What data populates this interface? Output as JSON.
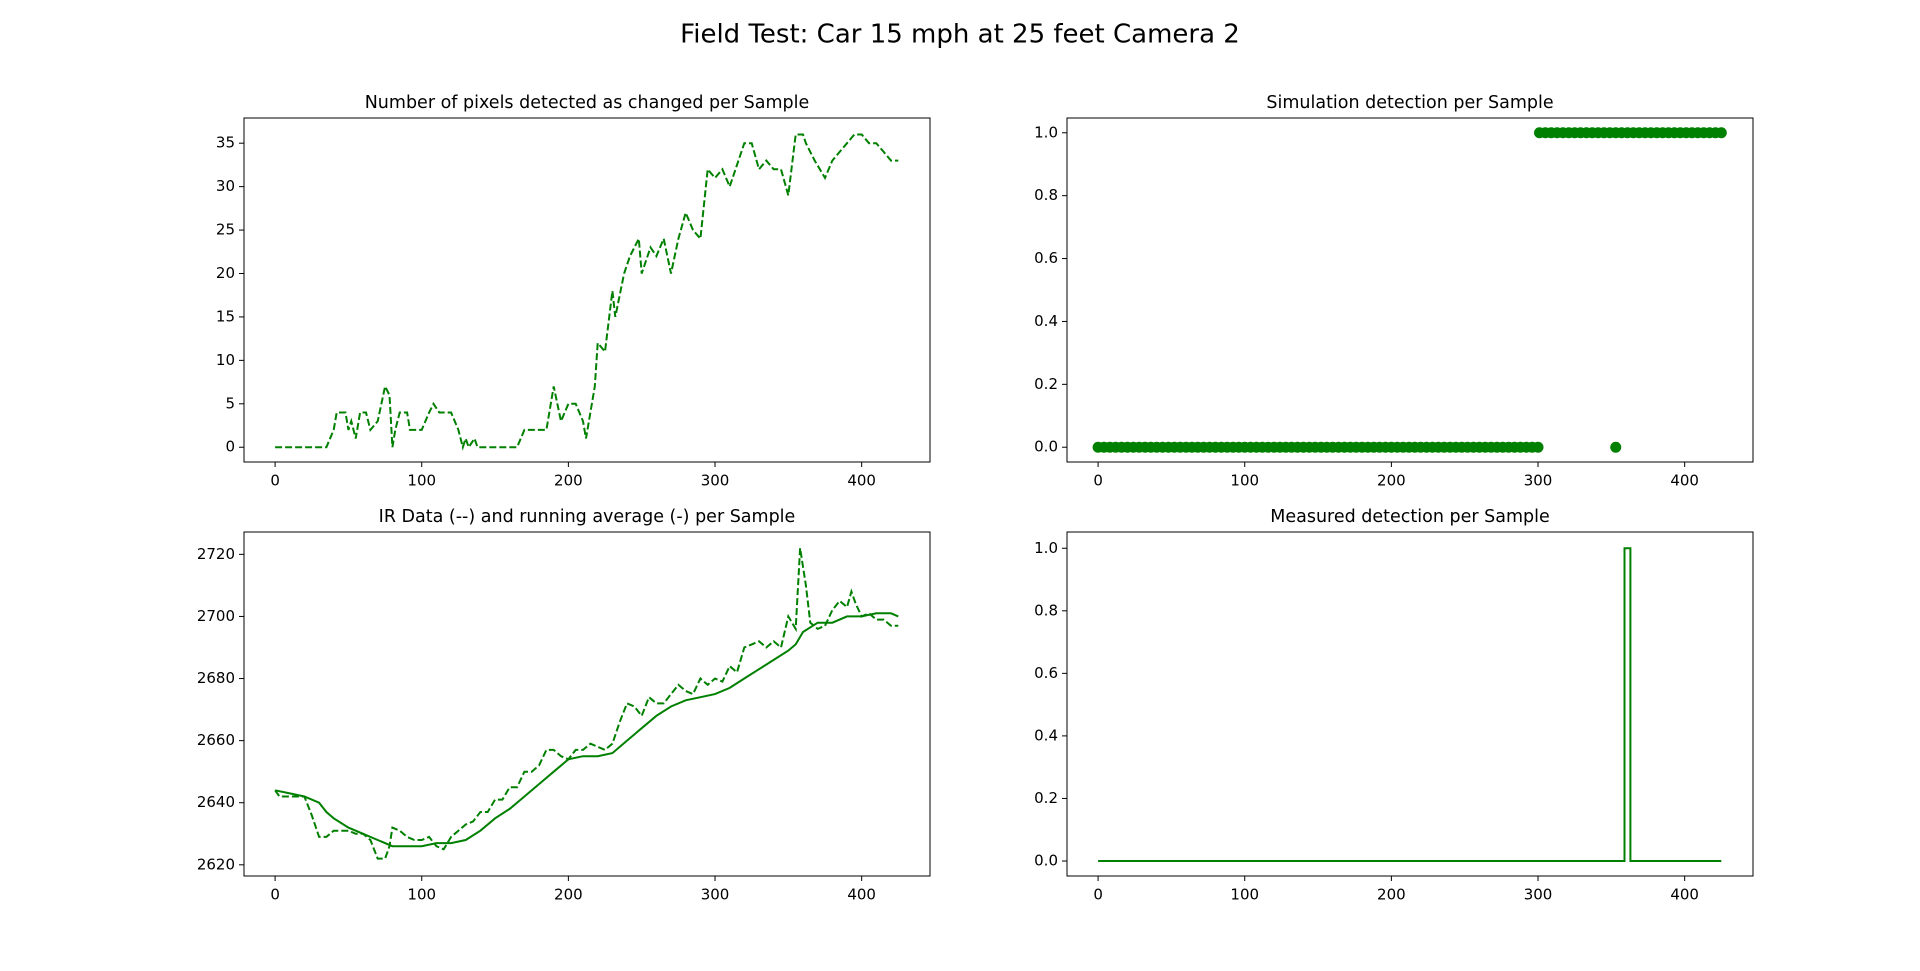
{
  "title": "Field Test: Car 15 mph at 25 feet Camera 2",
  "chart_data": [
    {
      "type": "line",
      "title": "Number of pixels detected as changed per Sample",
      "color": "#008000",
      "linestyle": "dashed",
      "x": [
        0,
        35,
        40,
        42,
        48,
        50,
        52,
        55,
        58,
        62,
        65,
        70,
        75,
        78,
        80,
        82,
        85,
        90,
        92,
        100,
        105,
        108,
        112,
        120,
        125,
        128,
        130,
        132,
        136,
        138,
        165,
        170,
        178,
        185,
        190,
        195,
        200,
        205,
        210,
        212,
        218,
        220,
        225,
        230,
        232,
        238,
        242,
        248,
        250,
        256,
        260,
        265,
        270,
        275,
        280,
        285,
        290,
        295,
        300,
        305,
        310,
        320,
        325,
        330,
        335,
        340,
        345,
        350,
        355,
        360,
        362,
        368,
        375,
        380,
        390,
        395,
        400,
        405,
        410,
        415,
        420,
        425
      ],
      "values": [
        0,
        0,
        2,
        4,
        4,
        2,
        3,
        1,
        4,
        4,
        2,
        3,
        7,
        6,
        0,
        2,
        4,
        4,
        2,
        2,
        4,
        5,
        4,
        4,
        2,
        0,
        1,
        0,
        1,
        0,
        0,
        2,
        2,
        2,
        7,
        3,
        5,
        5,
        3,
        1,
        7,
        12,
        11,
        18,
        15,
        20,
        22,
        24,
        20,
        23,
        22,
        24,
        20,
        24,
        27,
        25,
        24,
        32,
        31,
        32,
        30,
        35,
        35,
        32,
        33,
        32,
        32,
        29,
        36,
        36,
        35,
        33,
        31,
        33,
        35,
        36,
        36,
        35,
        35,
        34,
        33,
        33
      ],
      "xlim": [
        -21.2,
        446.6
      ],
      "xticks": [
        0,
        100,
        200,
        300,
        400
      ],
      "ylim": [
        -1.7,
        37.9
      ],
      "yticks": [
        0,
        5,
        10,
        15,
        20,
        25,
        30,
        35
      ]
    },
    {
      "type": "scatter",
      "title": "Simulation detection per Sample",
      "color": "#008000",
      "x": [
        0,
        4,
        8,
        12,
        16,
        20,
        24,
        28,
        32,
        36,
        40,
        44,
        48,
        52,
        56,
        60,
        64,
        68,
        72,
        76,
        80,
        84,
        88,
        92,
        96,
        100,
        104,
        108,
        112,
        116,
        120,
        124,
        128,
        132,
        136,
        140,
        144,
        148,
        152,
        156,
        160,
        164,
        168,
        172,
        176,
        180,
        184,
        188,
        192,
        196,
        200,
        204,
        208,
        212,
        216,
        220,
        224,
        228,
        232,
        236,
        240,
        244,
        248,
        252,
        256,
        260,
        264,
        268,
        272,
        276,
        280,
        284,
        288,
        292,
        296,
        300,
        301,
        305,
        309,
        313,
        317,
        321,
        325,
        329,
        333,
        337,
        341,
        345,
        349,
        353,
        357,
        361,
        365,
        369,
        373,
        377,
        381,
        385,
        389,
        393,
        397,
        401,
        405,
        409,
        413,
        417,
        421,
        425,
        353
      ],
      "values": [
        0,
        0,
        0,
        0,
        0,
        0,
        0,
        0,
        0,
        0,
        0,
        0,
        0,
        0,
        0,
        0,
        0,
        0,
        0,
        0,
        0,
        0,
        0,
        0,
        0,
        0,
        0,
        0,
        0,
        0,
        0,
        0,
        0,
        0,
        0,
        0,
        0,
        0,
        0,
        0,
        0,
        0,
        0,
        0,
        0,
        0,
        0,
        0,
        0,
        0,
        0,
        0,
        0,
        0,
        0,
        0,
        0,
        0,
        0,
        0,
        0,
        0,
        0,
        0,
        0,
        0,
        0,
        0,
        0,
        0,
        0,
        0,
        0,
        0,
        0,
        0,
        1,
        1,
        1,
        1,
        1,
        1,
        1,
        1,
        1,
        1,
        1,
        1,
        1,
        1,
        1,
        1,
        1,
        1,
        1,
        1,
        1,
        1,
        1,
        1,
        1,
        1,
        1,
        1,
        1,
        1,
        1,
        1,
        0
      ],
      "xlim": [
        -21.2,
        446.6
      ],
      "xticks": [
        0,
        100,
        200,
        300,
        400
      ],
      "ylim": [
        -0.047,
        1.047
      ],
      "yticks": [
        {
          "value": 0,
          "label": "0.0"
        },
        {
          "value": 0.2,
          "label": "0.2"
        },
        {
          "value": 0.4,
          "label": "0.4"
        },
        {
          "value": 0.6,
          "label": "0.6"
        },
        {
          "value": 0.8,
          "label": "0.8"
        },
        {
          "value": 1,
          "label": "1.0"
        }
      ]
    },
    {
      "type": "line",
      "title": "IR Data (--) and running average (-) per Sample",
      "series": [
        {
          "color": "#008000",
          "linestyle": "dashed",
          "x": [
            0,
            3,
            10,
            20,
            25,
            30,
            35,
            40,
            50,
            55,
            60,
            65,
            70,
            75,
            78,
            80,
            85,
            90,
            95,
            100,
            105,
            110,
            115,
            120,
            125,
            130,
            135,
            140,
            145,
            150,
            155,
            160,
            165,
            170,
            175,
            180,
            185,
            190,
            195,
            200,
            205,
            210,
            215,
            220,
            225,
            230,
            235,
            240,
            245,
            250,
            255,
            260,
            265,
            270,
            275,
            280,
            285,
            290,
            295,
            300,
            305,
            310,
            315,
            320,
            325,
            330,
            335,
            340,
            345,
            350,
            355,
            358,
            362,
            365,
            370,
            375,
            380,
            385,
            390,
            393,
            396,
            400,
            405,
            410,
            415,
            420,
            425
          ],
          "values": [
            2644,
            2642,
            2642,
            2642,
            2636,
            2629,
            2629,
            2631,
            2631,
            2630,
            2630,
            2628,
            2622,
            2622,
            2626,
            2632,
            2631,
            2629,
            2628,
            2628,
            2629,
            2626,
            2625,
            2629,
            2631,
            2633,
            2634,
            2637,
            2637,
            2641,
            2641,
            2645,
            2645,
            2650,
            2650,
            2652,
            2657,
            2657,
            2655,
            2654,
            2657,
            2657,
            2659,
            2658,
            2657,
            2659,
            2666,
            2672,
            2671,
            2668,
            2674,
            2672,
            2672,
            2675,
            2678,
            2676,
            2675,
            2680,
            2678,
            2680,
            2679,
            2684,
            2682,
            2690,
            2691,
            2692,
            2690,
            2692,
            2690,
            2700,
            2696,
            2722,
            2710,
            2698,
            2696,
            2697,
            2702,
            2705,
            2703,
            2708,
            2704,
            2700,
            2701,
            2699,
            2699,
            2697,
            2697
          ]
        },
        {
          "color": "#008000",
          "linestyle": "solid",
          "x": [
            0,
            10,
            20,
            30,
            35,
            40,
            50,
            60,
            70,
            80,
            100,
            110,
            120,
            130,
            140,
            150,
            160,
            170,
            180,
            190,
            200,
            210,
            220,
            230,
            240,
            250,
            260,
            270,
            280,
            290,
            300,
            310,
            320,
            330,
            340,
            350,
            355,
            360,
            370,
            380,
            390,
            400,
            410,
            420,
            425
          ],
          "values": [
            2644,
            2643,
            2642,
            2640,
            2637,
            2635,
            2632,
            2630,
            2628,
            2626,
            2626,
            2627,
            2627,
            2628,
            2631,
            2635,
            2638,
            2642,
            2646,
            2650,
            2654,
            2655,
            2655,
            2656,
            2660,
            2664,
            2668,
            2671,
            2673,
            2674,
            2675,
            2677,
            2680,
            2683,
            2686,
            2689,
            2691,
            2695,
            2698,
            2698,
            2700,
            2700,
            2701,
            2701,
            2700
          ]
        }
      ],
      "xlim": [
        -21.2,
        446.6
      ],
      "xticks": [
        0,
        100,
        200,
        300,
        400
      ],
      "ylim": [
        2616.4,
        2727.2
      ],
      "yticks": [
        2620,
        2640,
        2660,
        2680,
        2700,
        2720
      ]
    },
    {
      "type": "line",
      "title": "Measured detection per Sample",
      "color": "#008000",
      "linestyle": "solid",
      "x": [
        0,
        359,
        359,
        363,
        363,
        425
      ],
      "values": [
        0,
        0,
        1,
        1,
        0,
        0
      ],
      "xlim": [
        -21.2,
        446.6
      ],
      "xticks": [
        0,
        100,
        200,
        300,
        400
      ],
      "ylim": [
        -0.048,
        1.052
      ],
      "yticks": [
        {
          "value": 0,
          "label": "0.0"
        },
        {
          "value": 0.2,
          "label": "0.2"
        },
        {
          "value": 0.4,
          "label": "0.4"
        },
        {
          "value": 0.6,
          "label": "0.6"
        },
        {
          "value": 0.8,
          "label": "0.8"
        },
        {
          "value": 1,
          "label": "1.0"
        }
      ]
    }
  ]
}
